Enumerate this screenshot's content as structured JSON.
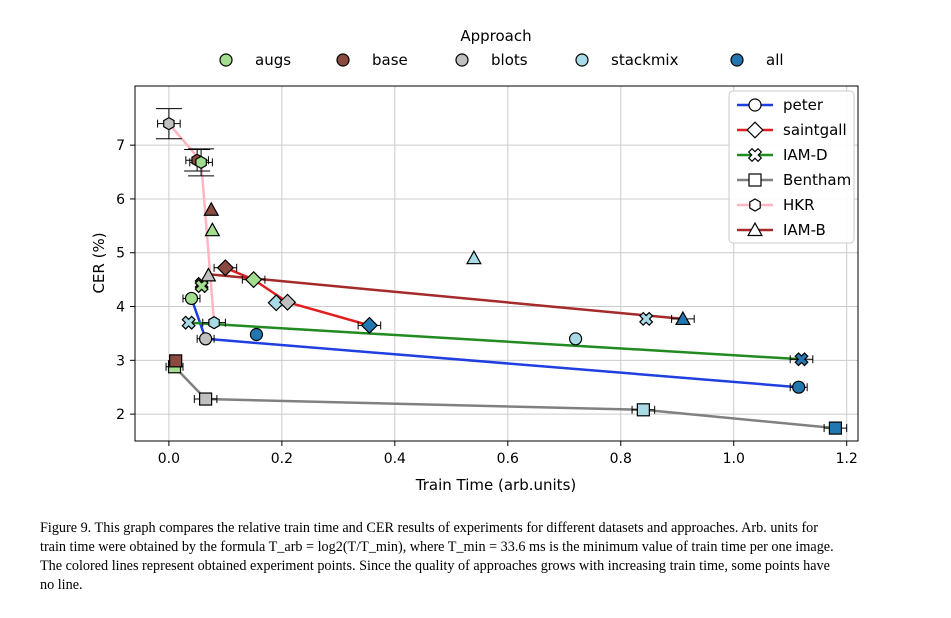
{
  "chart_data": {
    "type": "scatter",
    "xlabel": "Train Time (arb.units)",
    "ylabel": "CER (%)",
    "xlim": [
      -0.06,
      1.22
    ],
    "ylim": [
      1.5,
      8.1
    ],
    "xticks": [
      0.0,
      0.2,
      0.4,
      0.6,
      0.8,
      1.0,
      1.2
    ],
    "xtick_labels": [
      "0.0",
      "0.2",
      "0.4",
      "0.6",
      "0.8",
      "1.0",
      "1.2"
    ],
    "yticks": [
      2,
      3,
      4,
      5,
      6,
      7
    ],
    "ytick_labels": [
      "2",
      "3",
      "4",
      "5",
      "6",
      "7"
    ],
    "grid": true,
    "approach_legend": {
      "title": "Approach",
      "placement": "top-center",
      "entries": [
        {
          "label": "augs",
          "color": "#a3dd8f"
        },
        {
          "label": "base",
          "color": "#8b4a3f"
        },
        {
          "label": "blots",
          "color": "#c0c0c0"
        },
        {
          "label": "stackmix",
          "color": "#a9dbe6"
        },
        {
          "label": "all",
          "color": "#2277b0"
        }
      ]
    },
    "dataset_legend": {
      "placement": "top-right",
      "entries": [
        {
          "label": "peter",
          "marker": "circle",
          "color": "#1f3fe0"
        },
        {
          "label": "saintgall",
          "marker": "diamond",
          "color": "#e02020"
        },
        {
          "label": "IAM-D",
          "marker": "x",
          "color": "#218a21"
        },
        {
          "label": "Bentham",
          "marker": "square",
          "color": "#808080"
        },
        {
          "label": "HKR",
          "marker": "hexagon",
          "color": "#ffb6c1"
        },
        {
          "label": "IAM-B",
          "marker": "triangle",
          "color": "#a52a2a"
        }
      ]
    },
    "series": [
      {
        "dataset": "peter",
        "marker": "circle",
        "line_color": "#1f3fe0",
        "points": [
          {
            "x": 0.04,
            "y": 4.15,
            "approach": "augs",
            "xerr": 0.015
          },
          {
            "x": 0.065,
            "y": 3.4,
            "approach": "blots",
            "xerr": 0.015
          },
          {
            "x": 0.155,
            "y": 3.48,
            "approach": "all",
            "xerr": 0.0
          },
          {
            "x": 1.115,
            "y": 2.5,
            "approach": "all",
            "xerr": 0.015
          }
        ],
        "line": [
          [
            0.04,
            4.15
          ],
          [
            0.065,
            3.4
          ],
          [
            1.115,
            2.5
          ]
        ]
      },
      {
        "dataset": "saintgall",
        "marker": "diamond",
        "line_color": "#e02020",
        "points": [
          {
            "x": 0.1,
            "y": 4.72,
            "approach": "base",
            "xerr": 0.02
          },
          {
            "x": 0.15,
            "y": 4.5,
            "approach": "augs",
            "xerr": 0.02
          },
          {
            "x": 0.19,
            "y": 4.07,
            "approach": "stackmix",
            "xerr": 0.0
          },
          {
            "x": 0.21,
            "y": 4.08,
            "approach": "blots",
            "xerr": 0.0
          },
          {
            "x": 0.355,
            "y": 3.65,
            "approach": "all",
            "xerr": 0.02
          }
        ],
        "line": [
          [
            0.1,
            4.72
          ],
          [
            0.15,
            4.5
          ],
          [
            0.21,
            4.08
          ],
          [
            0.355,
            3.65
          ]
        ]
      },
      {
        "dataset": "IAM-D",
        "marker": "x",
        "line_color": "#218a21",
        "points": [
          {
            "x": 0.035,
            "y": 3.7,
            "approach": "stackmix",
            "xerr": 0.0
          },
          {
            "x": 0.058,
            "y": 4.42,
            "approach": "base",
            "xerr": 0.0
          },
          {
            "x": 0.058,
            "y": 4.38,
            "approach": "augs",
            "xerr": 0.0
          },
          {
            "x": 0.845,
            "y": 3.77,
            "approach": "stackmix",
            "xerr": 0.0
          },
          {
            "x": 1.12,
            "y": 3.02,
            "approach": "all",
            "xerr": 0.02
          }
        ],
        "line": [
          [
            0.035,
            3.7
          ],
          [
            1.12,
            3.02
          ]
        ]
      },
      {
        "dataset": "Bentham",
        "marker": "square",
        "line_color": "#808080",
        "points": [
          {
            "x": 0.01,
            "y": 2.88,
            "approach": "augs",
            "xerr": 0.015
          },
          {
            "x": 0.012,
            "y": 2.99,
            "approach": "base",
            "xerr": 0.0
          },
          {
            "x": 0.065,
            "y": 2.28,
            "approach": "blots",
            "xerr": 0.02
          },
          {
            "x": 0.84,
            "y": 2.08,
            "approach": "stackmix",
            "xerr": 0.02
          },
          {
            "x": 1.18,
            "y": 1.74,
            "approach": "all",
            "xerr": 0.02
          }
        ],
        "line": [
          [
            0.01,
            2.88
          ],
          [
            0.065,
            2.28
          ],
          [
            0.84,
            2.08
          ],
          [
            1.18,
            1.74
          ]
        ]
      },
      {
        "dataset": "HKR",
        "marker": "hexagon",
        "line_color": "#ffb6c1",
        "points": [
          {
            "x": 0.0,
            "y": 7.4,
            "approach": "blots",
            "xerr": 0.02,
            "yerr": 0.28
          },
          {
            "x": 0.05,
            "y": 6.72,
            "approach": "base",
            "xerr": 0.02,
            "yerr": 0.2
          },
          {
            "x": 0.057,
            "y": 6.68,
            "approach": "augs",
            "xerr": 0.02,
            "yerr": 0.25
          },
          {
            "x": 0.08,
            "y": 3.7,
            "approach": "stackmix",
            "xerr": 0.02
          }
        ],
        "line": [
          [
            0.0,
            7.4
          ],
          [
            0.057,
            6.7
          ],
          [
            0.08,
            3.7
          ]
        ]
      },
      {
        "dataset": "IAM-B",
        "marker": "triangle",
        "line_color": "#a52a2a",
        "points": [
          {
            "x": 0.075,
            "y": 5.8,
            "approach": "base",
            "xerr": 0.0
          },
          {
            "x": 0.077,
            "y": 5.42,
            "approach": "augs",
            "xerr": 0.0
          },
          {
            "x": 0.07,
            "y": 4.58,
            "approach": "blots",
            "xerr": 0.0
          },
          {
            "x": 0.54,
            "y": 4.9,
            "approach": "stackmix",
            "xerr": 0.0
          },
          {
            "x": 0.91,
            "y": 3.77,
            "approach": "all",
            "xerr": 0.02
          }
        ],
        "line": [
          [
            0.07,
            4.6
          ],
          [
            0.91,
            3.77
          ]
        ]
      },
      {
        "dataset": "",
        "marker": "circle",
        "line_color": "",
        "points": [
          {
            "x": 0.72,
            "y": 3.4,
            "approach": "stackmix",
            "xerr": 0.0
          }
        ],
        "line": []
      }
    ]
  },
  "caption": {
    "label": "Figure 9.",
    "line1": "This graph compares the relative train time and CER results of experiments for different datasets and approaches. Arb. units for",
    "line2": "train time were obtained by the formula T_arb = log2(T/T_min), where T_min = 33.6 ms is the minimum value of train time per one image.",
    "line3": "The colored lines represent obtained experiment points. Since the quality of approaches grows with increasing train time, some points have",
    "line4": "no line."
  }
}
